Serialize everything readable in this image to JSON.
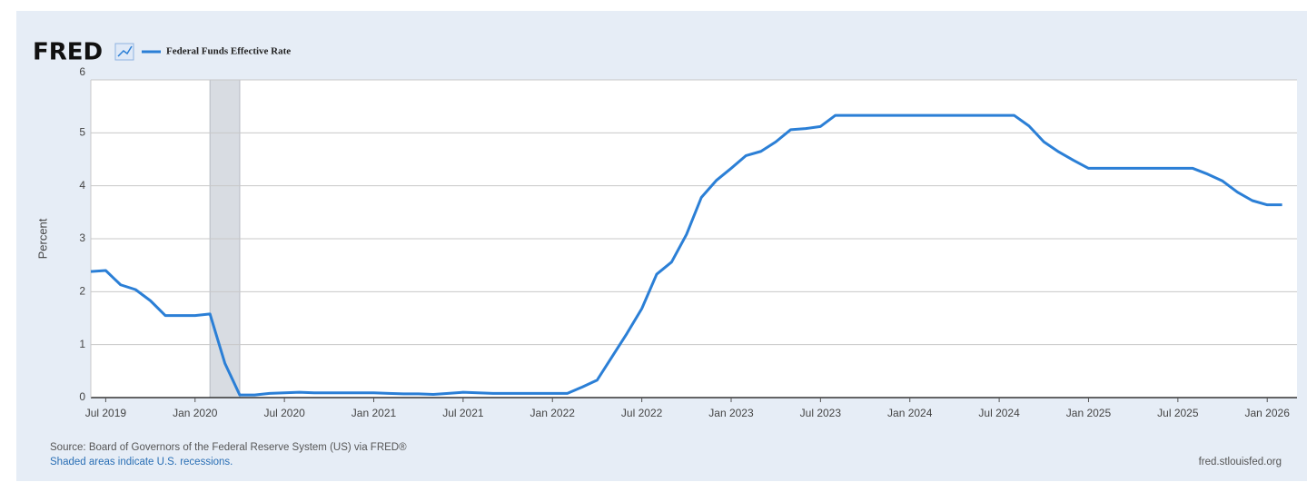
{
  "chart_data": {
    "type": "line",
    "logo": "FRED",
    "y_label": "Percent",
    "source": "Source: Board of Governors of the Federal Reserve System (US) via FRED®",
    "recession_note": "Shaded areas indicate U.S. recessions.",
    "site": "fred.stlouisfed.org",
    "x": [
      "2019-06",
      "2019-07",
      "2019-08",
      "2019-09",
      "2019-10",
      "2019-11",
      "2019-12",
      "2020-01",
      "2020-02",
      "2020-03",
      "2020-04",
      "2020-05",
      "2020-06",
      "2020-07",
      "2020-08",
      "2020-09",
      "2020-10",
      "2020-11",
      "2020-12",
      "2021-01",
      "2021-02",
      "2021-03",
      "2021-04",
      "2021-05",
      "2021-06",
      "2021-07",
      "2021-08",
      "2021-09",
      "2021-10",
      "2021-11",
      "2021-12",
      "2022-01",
      "2022-02",
      "2022-03",
      "2022-04",
      "2022-05",
      "2022-06",
      "2022-07",
      "2022-08",
      "2022-09",
      "2022-10",
      "2022-11",
      "2022-12",
      "2023-01",
      "2023-02",
      "2023-03",
      "2023-04",
      "2023-05",
      "2023-06",
      "2023-07",
      "2023-08",
      "2023-09",
      "2023-10",
      "2023-11",
      "2023-12",
      "2024-01",
      "2024-02",
      "2024-03",
      "2024-04",
      "2024-05",
      "2024-06",
      "2024-07",
      "2024-08",
      "2024-09",
      "2024-10",
      "2024-11",
      "2024-12",
      "2025-01",
      "2025-02",
      "2025-03",
      "2025-04",
      "2025-05",
      "2025-06",
      "2025-07",
      "2025-08",
      "2025-09",
      "2025-10",
      "2025-11",
      "2025-12",
      "2026-01",
      "2026-02"
    ],
    "series": [
      {
        "name": "Federal Funds Effective Rate",
        "color": "#2b7fd6",
        "values": [
          2.38,
          2.4,
          2.13,
          2.04,
          1.83,
          1.55,
          1.55,
          1.55,
          1.58,
          0.65,
          0.05,
          0.05,
          0.08,
          0.09,
          0.1,
          0.09,
          0.09,
          0.09,
          0.09,
          0.09,
          0.08,
          0.07,
          0.07,
          0.06,
          0.08,
          0.1,
          0.09,
          0.08,
          0.08,
          0.08,
          0.08,
          0.08,
          0.08,
          0.2,
          0.33,
          0.77,
          1.21,
          1.68,
          2.33,
          2.56,
          3.08,
          3.78,
          4.1,
          4.33,
          4.57,
          4.65,
          4.83,
          5.06,
          5.08,
          5.12,
          5.33,
          5.33,
          5.33,
          5.33,
          5.33,
          5.33,
          5.33,
          5.33,
          5.33,
          5.33,
          5.33,
          5.33,
          5.33,
          5.13,
          4.83,
          4.64,
          4.48,
          4.33,
          4.33,
          4.33,
          4.33,
          4.33,
          4.33,
          4.33,
          4.33,
          4.22,
          4.09,
          3.88,
          3.72,
          3.64,
          3.64
        ]
      }
    ],
    "recessions": [
      {
        "start": "2020-02",
        "end": "2020-04"
      }
    ],
    "xlim": [
      "2019-06",
      "2026-03"
    ],
    "xticks": [
      {
        "value": "2019-07",
        "label": "Jul 2019"
      },
      {
        "value": "2020-01",
        "label": "Jan 2020"
      },
      {
        "value": "2020-07",
        "label": "Jul 2020"
      },
      {
        "value": "2021-01",
        "label": "Jan 2021"
      },
      {
        "value": "2021-07",
        "label": "Jul 2021"
      },
      {
        "value": "2022-01",
        "label": "Jan 2022"
      },
      {
        "value": "2022-07",
        "label": "Jul 2022"
      },
      {
        "value": "2023-01",
        "label": "Jan 2023"
      },
      {
        "value": "2023-07",
        "label": "Jul 2023"
      },
      {
        "value": "2024-01",
        "label": "Jan 2024"
      },
      {
        "value": "2024-07",
        "label": "Jul 2024"
      },
      {
        "value": "2025-01",
        "label": "Jan 2025"
      },
      {
        "value": "2025-07",
        "label": "Jul 2025"
      },
      {
        "value": "2026-01",
        "label": "Jan 2026"
      }
    ],
    "ylim": [
      0,
      6
    ],
    "yticks": [
      0,
      1,
      2,
      3,
      4,
      5,
      6
    ],
    "grid": true
  }
}
